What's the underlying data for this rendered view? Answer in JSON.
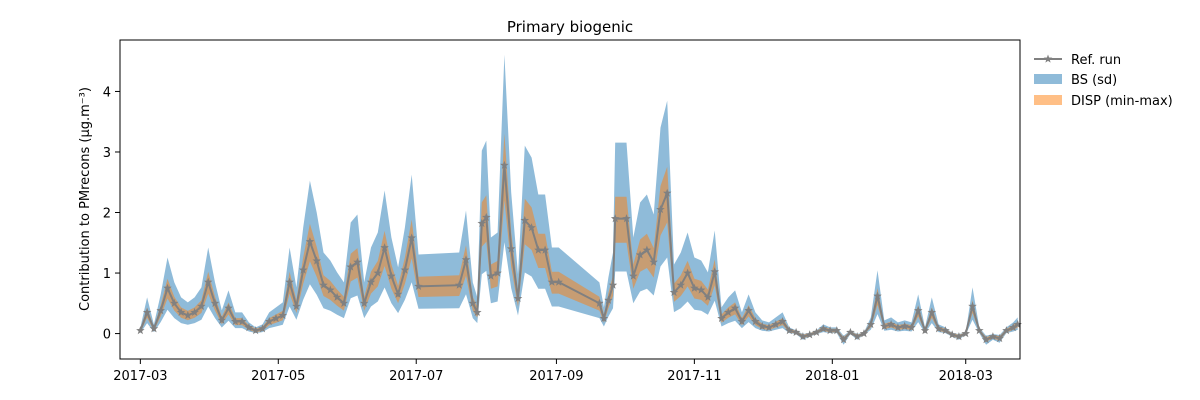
{
  "chart_data": {
    "type": "line",
    "title": "Primary biogenic",
    "ylabel": "Contribution to PMrecons (µg.m⁻³)",
    "xlabel": "",
    "ylim": [
      -0.42,
      4.85
    ],
    "xlim": [
      "2017-02-20",
      "2018-03-25"
    ],
    "x_ticks": [
      "2017-03-01",
      "2017-05-01",
      "2017-07-01",
      "2017-09-01",
      "2017-11-01",
      "2018-01-01",
      "2018-03-01"
    ],
    "x_tick_labels": [
      "2017-03",
      "2017-05",
      "2017-07",
      "2017-09",
      "2017-11",
      "2018-01",
      "2018-03"
    ],
    "y_ticks": [
      0,
      1,
      2,
      3,
      4
    ],
    "y_tick_labels": [
      "0",
      "1",
      "2",
      "3",
      "4"
    ],
    "legend_position": "outside-right-top",
    "grid": false,
    "colors": {
      "ref_run": "#808080",
      "bs_sd": "#1f77b4",
      "disp": "#ff7f0e",
      "bs_alpha": 0.5,
      "disp_alpha": 0.5
    },
    "series": [
      {
        "name": "Ref. run",
        "marker": "star",
        "points": [
          [
            "2017-03-01",
            0.05
          ],
          [
            "2017-03-04",
            0.35
          ],
          [
            "2017-03-07",
            0.08
          ],
          [
            "2017-03-10",
            0.38
          ],
          [
            "2017-03-13",
            0.75
          ],
          [
            "2017-03-16",
            0.5
          ],
          [
            "2017-03-19",
            0.35
          ],
          [
            "2017-03-22",
            0.3
          ],
          [
            "2017-03-25",
            0.35
          ],
          [
            "2017-03-28",
            0.45
          ],
          [
            "2017-03-31",
            0.85
          ],
          [
            "2017-04-03",
            0.5
          ],
          [
            "2017-04-06",
            0.22
          ],
          [
            "2017-04-09",
            0.42
          ],
          [
            "2017-04-12",
            0.2
          ],
          [
            "2017-04-15",
            0.2
          ],
          [
            "2017-04-18",
            0.1
          ],
          [
            "2017-04-21",
            0.05
          ],
          [
            "2017-04-24",
            0.08
          ],
          [
            "2017-04-27",
            0.2
          ],
          [
            "2017-04-30",
            0.25
          ],
          [
            "2017-05-03",
            0.3
          ],
          [
            "2017-05-06",
            0.85
          ],
          [
            "2017-05-09",
            0.45
          ],
          [
            "2017-05-12",
            1.05
          ],
          [
            "2017-05-15",
            1.52
          ],
          [
            "2017-05-18",
            1.2
          ],
          [
            "2017-05-21",
            0.8
          ],
          [
            "2017-05-24",
            0.72
          ],
          [
            "2017-05-27",
            0.6
          ],
          [
            "2017-05-30",
            0.5
          ],
          [
            "2017-06-02",
            1.1
          ],
          [
            "2017-06-05",
            1.18
          ],
          [
            "2017-06-08",
            0.5
          ],
          [
            "2017-06-11",
            0.85
          ],
          [
            "2017-06-14",
            1.0
          ],
          [
            "2017-06-17",
            1.42
          ],
          [
            "2017-06-20",
            0.95
          ],
          [
            "2017-06-23",
            0.65
          ],
          [
            "2017-06-26",
            1.05
          ],
          [
            "2017-06-29",
            1.58
          ],
          [
            "2017-07-02",
            0.78
          ],
          [
            "2017-07-20",
            0.8
          ],
          [
            "2017-07-23",
            1.22
          ],
          [
            "2017-07-26",
            0.5
          ],
          [
            "2017-07-28",
            0.35
          ],
          [
            "2017-07-30",
            1.82
          ],
          [
            "2017-08-01",
            1.92
          ],
          [
            "2017-08-03",
            0.95
          ],
          [
            "2017-08-06",
            1.0
          ],
          [
            "2017-08-09",
            2.78
          ],
          [
            "2017-08-12",
            1.4
          ],
          [
            "2017-08-15",
            0.58
          ],
          [
            "2017-08-18",
            1.87
          ],
          [
            "2017-08-21",
            1.75
          ],
          [
            "2017-08-24",
            1.38
          ],
          [
            "2017-08-27",
            1.38
          ],
          [
            "2017-08-30",
            0.85
          ],
          [
            "2017-09-02",
            0.85
          ],
          [
            "2017-09-20",
            0.5
          ],
          [
            "2017-09-22",
            0.25
          ],
          [
            "2017-09-24",
            0.55
          ],
          [
            "2017-09-26",
            0.8
          ],
          [
            "2017-09-27",
            1.9
          ],
          [
            "2017-10-02",
            1.9
          ],
          [
            "2017-10-05",
            0.95
          ],
          [
            "2017-10-08",
            1.3
          ],
          [
            "2017-10-11",
            1.38
          ],
          [
            "2017-10-14",
            1.18
          ],
          [
            "2017-10-17",
            2.05
          ],
          [
            "2017-10-20",
            2.32
          ],
          [
            "2017-10-23",
            0.68
          ],
          [
            "2017-10-26",
            0.8
          ],
          [
            "2017-10-29",
            1.0
          ],
          [
            "2017-11-01",
            0.75
          ],
          [
            "2017-11-04",
            0.72
          ],
          [
            "2017-11-07",
            0.6
          ],
          [
            "2017-11-10",
            1.02
          ],
          [
            "2017-11-13",
            0.25
          ],
          [
            "2017-11-16",
            0.35
          ],
          [
            "2017-11-19",
            0.42
          ],
          [
            "2017-11-22",
            0.2
          ],
          [
            "2017-11-25",
            0.38
          ],
          [
            "2017-11-28",
            0.2
          ],
          [
            "2017-12-01",
            0.12
          ],
          [
            "2017-12-04",
            0.1
          ],
          [
            "2017-12-07",
            0.15
          ],
          [
            "2017-12-10",
            0.2
          ],
          [
            "2017-12-13",
            0.05
          ],
          [
            "2017-12-16",
            0.02
          ],
          [
            "2017-12-19",
            -0.05
          ],
          [
            "2017-12-22",
            -0.02
          ],
          [
            "2017-12-25",
            0.02
          ],
          [
            "2017-12-28",
            0.08
          ],
          [
            "2017-12-31",
            0.05
          ],
          [
            "2018-01-03",
            0.05
          ],
          [
            "2018-01-06",
            -0.1
          ],
          [
            "2018-01-09",
            0.02
          ],
          [
            "2018-01-12",
            -0.05
          ],
          [
            "2018-01-15",
            0.0
          ],
          [
            "2018-01-18",
            0.15
          ],
          [
            "2018-01-21",
            0.62
          ],
          [
            "2018-01-24",
            0.12
          ],
          [
            "2018-01-27",
            0.15
          ],
          [
            "2018-01-30",
            0.1
          ],
          [
            "2018-02-02",
            0.12
          ],
          [
            "2018-02-05",
            0.1
          ],
          [
            "2018-02-08",
            0.38
          ],
          [
            "2018-02-11",
            0.05
          ],
          [
            "2018-02-14",
            0.35
          ],
          [
            "2018-02-17",
            0.08
          ],
          [
            "2018-02-20",
            0.05
          ],
          [
            "2018-02-23",
            -0.02
          ],
          [
            "2018-02-26",
            -0.05
          ],
          [
            "2018-03-01",
            0.0
          ],
          [
            "2018-03-04",
            0.45
          ],
          [
            "2018-03-07",
            0.05
          ],
          [
            "2018-03-10",
            -0.1
          ],
          [
            "2018-03-13",
            -0.05
          ],
          [
            "2018-03-16",
            -0.08
          ],
          [
            "2018-03-19",
            0.05
          ],
          [
            "2018-03-22",
            0.1
          ],
          [
            "2018-03-24",
            0.15
          ]
        ]
      },
      {
        "name": "BS (sd)",
        "band_scale_low": 0.55,
        "band_scale_high": 1.65
      },
      {
        "name": "DISP (min-max)",
        "band_scale_low": 0.8,
        "band_scale_high": 1.18
      }
    ]
  }
}
